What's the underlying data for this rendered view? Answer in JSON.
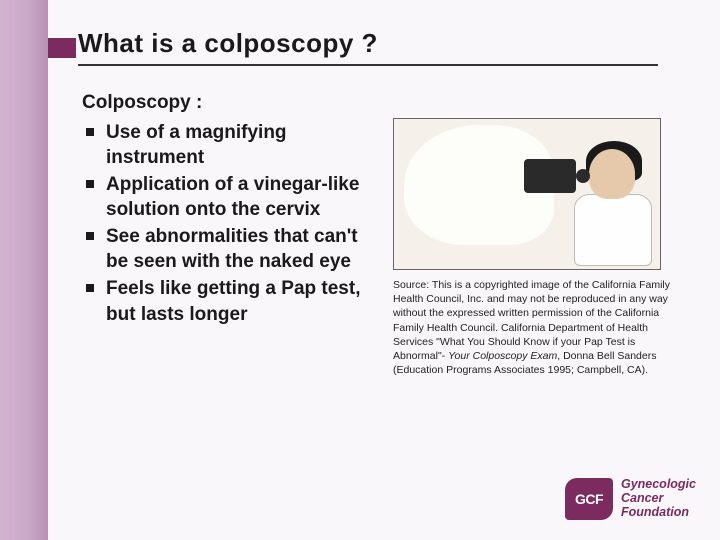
{
  "colors": {
    "accent": "#7c2b61",
    "sidebar_gradient_from": "#d1b3cf",
    "sidebar_gradient_to": "#b890b5",
    "bg": "#faf7fa",
    "text": "#1a1a1a"
  },
  "title": "What is a  colposcopy ?",
  "intro": "Colposcopy :",
  "bullets": [
    "Use of a magnifying instrument",
    "Application of a vinegar-like solution onto the cervix",
    "See abnormalities that can't be seen with the naked eye",
    "Feels like getting a Pap test, but lasts longer"
  ],
  "source": {
    "prefix": "Source: This is a copyrighted image of the California Family Health Council, Inc. and may not be reproduced in any way without the expressed written permission of the California Family Health Council. California Department of Health Services \"What You Should Know if your Pap Test is Abnormal\"- ",
    "italic": "Your Colposcopy Exam",
    "suffix": ", Donna Bell Sanders (Education Programs Associates 1995; Campbell, CA)."
  },
  "logo": {
    "badge": "GCF",
    "line1": "Gynecologic",
    "line2": "Cancer",
    "line3": "Foundation"
  },
  "illustration": {
    "description": "Line drawing of clinician at colposcope examining patient",
    "bg": "#f5f0ea",
    "skin": "#e6c8aa",
    "hair": "#1a1a1a",
    "coat": "#fefefe"
  }
}
